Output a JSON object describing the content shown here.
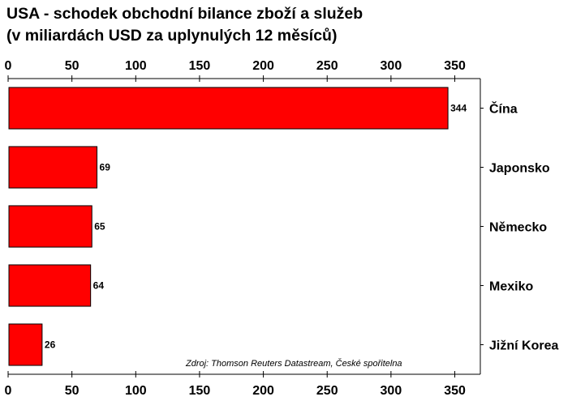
{
  "chart_data": {
    "type": "bar",
    "orientation": "horizontal",
    "title_line1": "USA - schodek obchodní bilance zboží a služeb",
    "title_line2": "(v miliardách USD za uplynulých 12 měsíců)",
    "categories": [
      "Čína",
      "Japonsko",
      "Německo",
      "Mexiko",
      "Jižní Korea"
    ],
    "values": [
      344,
      69,
      65,
      64,
      26
    ],
    "value_labels": [
      "344",
      "69",
      "65",
      "64",
      "26"
    ],
    "xlim": [
      0,
      370
    ],
    "xticks": [
      0,
      50,
      100,
      150,
      200,
      250,
      300,
      350
    ],
    "xtick_labels": [
      "0",
      "50",
      "100",
      "150",
      "200",
      "250",
      "300",
      "350"
    ],
    "axis_top_and_bottom": true,
    "category_labels_side": "right",
    "grid": false,
    "source": "Zdroj: Thomson Reuters Datastream, České spořitelna",
    "colors": {
      "bar": "#ff0000",
      "bar_edge": "#000000",
      "axis": "#000000"
    }
  }
}
